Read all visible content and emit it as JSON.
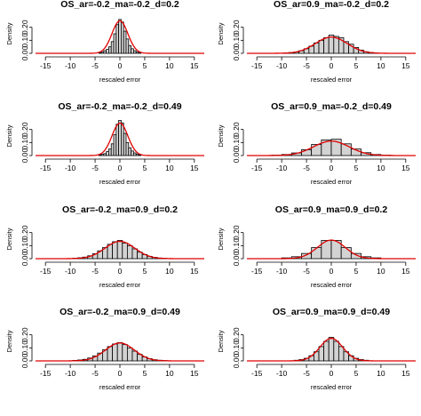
{
  "chart_data": [
    {
      "type": "bar",
      "title": "OS_ar=-0.2_ma=-0.2_d=0.2",
      "xlabel": "rescaled error",
      "ylabel": "Density",
      "xlim": [
        -17,
        17
      ],
      "ylim": [
        0,
        0.3
      ],
      "xticks": [
        -15,
        -10,
        -5,
        0,
        5,
        10,
        15
      ],
      "yticks": [
        0,
        0.1,
        0.2
      ],
      "bin_width": 0.5,
      "bins": [
        {
          "x": -4.0,
          "y": 0.005
        },
        {
          "x": -3.5,
          "y": 0.01
        },
        {
          "x": -3.0,
          "y": 0.02
        },
        {
          "x": -2.5,
          "y": 0.03
        },
        {
          "x": -2.0,
          "y": 0.05
        },
        {
          "x": -1.5,
          "y": 0.09
        },
        {
          "x": -1.0,
          "y": 0.15
        },
        {
          "x": -0.5,
          "y": 0.22
        },
        {
          "x": 0.0,
          "y": 0.26
        },
        {
          "x": 0.5,
          "y": 0.24
        },
        {
          "x": 1.0,
          "y": 0.17
        },
        {
          "x": 1.5,
          "y": 0.11
        },
        {
          "x": 2.0,
          "y": 0.06
        },
        {
          "x": 2.5,
          "y": 0.035
        },
        {
          "x": 3.0,
          "y": 0.02
        },
        {
          "x": 3.5,
          "y": 0.01
        },
        {
          "x": 4.0,
          "y": 0.005
        }
      ],
      "density_sd": 1.6
    },
    {
      "type": "bar",
      "title": "OS_ar=0.9_ma=-0.2_d=0.2",
      "xlabel": "rescaled error",
      "ylabel": "Density",
      "xlim": [
        -17,
        17
      ],
      "ylim": [
        0,
        0.3
      ],
      "xticks": [
        -15,
        -10,
        -5,
        0,
        5,
        10,
        15
      ],
      "yticks": [
        0,
        0.1,
        0.2
      ],
      "bin_width": 1,
      "bins": [
        {
          "x": -9.0,
          "y": 0.004
        },
        {
          "x": -8.0,
          "y": 0.006
        },
        {
          "x": -7.0,
          "y": 0.01
        },
        {
          "x": -6.0,
          "y": 0.02
        },
        {
          "x": -5.0,
          "y": 0.035
        },
        {
          "x": -4.0,
          "y": 0.055
        },
        {
          "x": -3.0,
          "y": 0.08
        },
        {
          "x": -2.0,
          "y": 0.1
        },
        {
          "x": -1.0,
          "y": 0.12
        },
        {
          "x": 0.0,
          "y": 0.14
        },
        {
          "x": 1.0,
          "y": 0.13
        },
        {
          "x": 2.0,
          "y": 0.12
        },
        {
          "x": 3.0,
          "y": 0.09
        },
        {
          "x": 4.0,
          "y": 0.07
        },
        {
          "x": 5.0,
          "y": 0.045
        },
        {
          "x": 6.0,
          "y": 0.025
        },
        {
          "x": 7.0,
          "y": 0.012
        },
        {
          "x": 8.0,
          "y": 0.006
        },
        {
          "x": 9.0,
          "y": 0.003
        }
      ],
      "density_sd": 3.2
    },
    {
      "type": "bar",
      "title": "OS_ar=-0.2_ma=-0.2_d=0.49",
      "xlabel": "rescaled error",
      "ylabel": "Density",
      "xlim": [
        -17,
        17
      ],
      "ylim": [
        0,
        0.3
      ],
      "xticks": [
        -15,
        -10,
        -5,
        0,
        5,
        10,
        15
      ],
      "yticks": [
        0,
        0.1,
        0.2
      ],
      "bin_width": 0.5,
      "bins": [
        {
          "x": -4.0,
          "y": 0.005
        },
        {
          "x": -3.5,
          "y": 0.01
        },
        {
          "x": -3.0,
          "y": 0.015
        },
        {
          "x": -2.5,
          "y": 0.03
        },
        {
          "x": -2.0,
          "y": 0.05
        },
        {
          "x": -1.5,
          "y": 0.09
        },
        {
          "x": -1.0,
          "y": 0.16
        },
        {
          "x": -0.5,
          "y": 0.24
        },
        {
          "x": 0.0,
          "y": 0.27
        },
        {
          "x": 0.5,
          "y": 0.25
        },
        {
          "x": 1.0,
          "y": 0.17
        },
        {
          "x": 1.5,
          "y": 0.1
        },
        {
          "x": 2.0,
          "y": 0.06
        },
        {
          "x": 2.5,
          "y": 0.035
        },
        {
          "x": 3.0,
          "y": 0.02
        },
        {
          "x": 3.5,
          "y": 0.01
        },
        {
          "x": 4.0,
          "y": 0.005
        }
      ],
      "density_sd": 1.6
    },
    {
      "type": "bar",
      "title": "OS_ar=0.9_ma=-0.2_d=0.49",
      "xlabel": "rescaled error",
      "ylabel": "Density",
      "xlim": [
        -17,
        17
      ],
      "ylim": [
        0,
        0.3
      ],
      "xticks": [
        -15,
        -10,
        -5,
        0,
        5,
        10,
        15
      ],
      "yticks": [
        0,
        0.1,
        0.2
      ],
      "bin_width": 2,
      "bins": [
        {
          "x": -11.0,
          "y": 0.003
        },
        {
          "x": -9.0,
          "y": 0.008
        },
        {
          "x": -7.0,
          "y": 0.02
        },
        {
          "x": -5.0,
          "y": 0.045
        },
        {
          "x": -3.0,
          "y": 0.085
        },
        {
          "x": -1.0,
          "y": 0.12
        },
        {
          "x": 1.0,
          "y": 0.125
        },
        {
          "x": 3.0,
          "y": 0.09
        },
        {
          "x": 5.0,
          "y": 0.05
        },
        {
          "x": 7.0,
          "y": 0.022
        },
        {
          "x": 9.0,
          "y": 0.008
        },
        {
          "x": 11.0,
          "y": 0.003
        }
      ],
      "density_sd": 3.6
    },
    {
      "type": "bar",
      "title": "OS_ar=-0.2_ma=0.9_d=0.2",
      "xlabel": "rescaled error",
      "ylabel": "Density",
      "xlim": [
        -17,
        17
      ],
      "ylim": [
        0,
        0.3
      ],
      "xticks": [
        -15,
        -10,
        -5,
        0,
        5,
        10,
        15
      ],
      "yticks": [
        0,
        0.1,
        0.2
      ],
      "bin_width": 1,
      "bins": [
        {
          "x": -9.0,
          "y": 0.004
        },
        {
          "x": -8.0,
          "y": 0.007
        },
        {
          "x": -7.0,
          "y": 0.012
        },
        {
          "x": -6.0,
          "y": 0.022
        },
        {
          "x": -5.0,
          "y": 0.038
        },
        {
          "x": -4.0,
          "y": 0.06
        },
        {
          "x": -3.0,
          "y": 0.085
        },
        {
          "x": -2.0,
          "y": 0.11
        },
        {
          "x": -1.0,
          "y": 0.13
        },
        {
          "x": 0.0,
          "y": 0.14
        },
        {
          "x": 1.0,
          "y": 0.12
        },
        {
          "x": 2.0,
          "y": 0.1
        },
        {
          "x": 3.0,
          "y": 0.075
        },
        {
          "x": 4.0,
          "y": 0.05
        },
        {
          "x": 5.0,
          "y": 0.032
        },
        {
          "x": 6.0,
          "y": 0.018
        },
        {
          "x": 7.0,
          "y": 0.01
        },
        {
          "x": 8.0,
          "y": 0.005
        },
        {
          "x": 9.0,
          "y": 0.003
        }
      ],
      "density_sd": 3.0
    },
    {
      "type": "bar",
      "title": "OS_ar=0.9_ma=0.9_d=0.2",
      "xlabel": "rescaled error",
      "ylabel": "Density",
      "xlim": [
        -17,
        17
      ],
      "ylim": [
        0,
        0.3
      ],
      "xticks": [
        -15,
        -10,
        -5,
        0,
        5,
        10,
        15
      ],
      "yticks": [
        0,
        0.1,
        0.2
      ],
      "bin_width": 2,
      "bins": [
        {
          "x": -9.0,
          "y": 0.006
        },
        {
          "x": -7.0,
          "y": 0.015
        },
        {
          "x": -5.0,
          "y": 0.04
        },
        {
          "x": -3.0,
          "y": 0.085
        },
        {
          "x": -1.0,
          "y": 0.14
        },
        {
          "x": 1.0,
          "y": 0.14
        },
        {
          "x": 3.0,
          "y": 0.085
        },
        {
          "x": 5.0,
          "y": 0.04
        },
        {
          "x": 7.0,
          "y": 0.015
        },
        {
          "x": 9.0,
          "y": 0.006
        }
      ],
      "density_sd": 2.8
    },
    {
      "type": "bar",
      "title": "OS_ar=-0.2_ma=0.9_d=0.49",
      "xlabel": "rescaled error",
      "ylabel": "Density",
      "xlim": [
        -17,
        17
      ],
      "ylim": [
        0,
        0.3
      ],
      "xticks": [
        -15,
        -10,
        -5,
        0,
        5,
        10,
        15
      ],
      "yticks": [
        0,
        0.1,
        0.2
      ],
      "bin_width": 1,
      "bins": [
        {
          "x": -9.0,
          "y": 0.004
        },
        {
          "x": -8.0,
          "y": 0.007
        },
        {
          "x": -7.0,
          "y": 0.012
        },
        {
          "x": -6.0,
          "y": 0.022
        },
        {
          "x": -5.0,
          "y": 0.038
        },
        {
          "x": -4.0,
          "y": 0.06
        },
        {
          "x": -3.0,
          "y": 0.085
        },
        {
          "x": -2.0,
          "y": 0.11
        },
        {
          "x": -1.0,
          "y": 0.13
        },
        {
          "x": 0.0,
          "y": 0.14
        },
        {
          "x": 1.0,
          "y": 0.125
        },
        {
          "x": 2.0,
          "y": 0.1
        },
        {
          "x": 3.0,
          "y": 0.075
        },
        {
          "x": 4.0,
          "y": 0.05
        },
        {
          "x": 5.0,
          "y": 0.03
        },
        {
          "x": 6.0,
          "y": 0.017
        },
        {
          "x": 7.0,
          "y": 0.009
        },
        {
          "x": 8.0,
          "y": 0.005
        },
        {
          "x": 9.0,
          "y": 0.003
        }
      ],
      "density_sd": 2.9
    },
    {
      "type": "bar",
      "title": "OS_ar=0.9_ma=0.9_d=0.49",
      "xlabel": "rescaled error",
      "ylabel": "Density",
      "xlim": [
        -17,
        17
      ],
      "ylim": [
        0,
        0.3
      ],
      "xticks": [
        -15,
        -10,
        -5,
        0,
        5,
        10,
        15
      ],
      "yticks": [
        0,
        0.1,
        0.2
      ],
      "bin_width": 1,
      "bins": [
        {
          "x": -7.0,
          "y": 0.005
        },
        {
          "x": -6.0,
          "y": 0.01
        },
        {
          "x": -5.0,
          "y": 0.02
        },
        {
          "x": -4.0,
          "y": 0.04
        },
        {
          "x": -3.0,
          "y": 0.07
        },
        {
          "x": -2.0,
          "y": 0.11
        },
        {
          "x": -1.0,
          "y": 0.15
        },
        {
          "x": 0.0,
          "y": 0.18
        },
        {
          "x": 1.0,
          "y": 0.15
        },
        {
          "x": 2.0,
          "y": 0.11
        },
        {
          "x": 3.0,
          "y": 0.07
        },
        {
          "x": 4.0,
          "y": 0.04
        },
        {
          "x": 5.0,
          "y": 0.02
        },
        {
          "x": 6.0,
          "y": 0.01
        },
        {
          "x": 7.0,
          "y": 0.005
        }
      ],
      "density_sd": 2.3
    }
  ],
  "colors": {
    "bar_fill": "#d3d3d3",
    "bar_stroke": "#000000",
    "density_line": "#e00000"
  }
}
